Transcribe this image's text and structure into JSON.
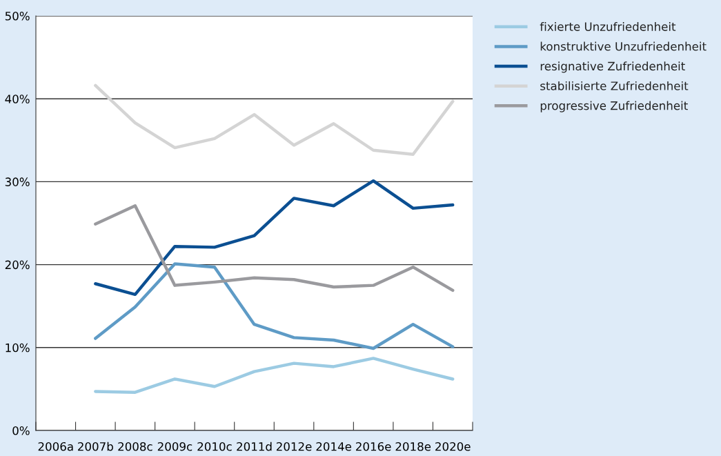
{
  "chart_data": {
    "type": "line",
    "categories": [
      "2006a",
      "2007b",
      "2008c",
      "2009c",
      "2010c",
      "2011d",
      "2012e",
      "2014e",
      "2016e",
      "2018e",
      "2020e"
    ],
    "ylim": [
      0,
      50
    ],
    "yticks": [
      {
        "value": 0,
        "label": "0%"
      },
      {
        "value": 10,
        "label": "10%"
      },
      {
        "value": 20,
        "label": "20%"
      },
      {
        "value": 30,
        "label": "30%"
      },
      {
        "value": 40,
        "label": "40%"
      },
      {
        "value": 50,
        "label": "50%"
      }
    ],
    "grid": "y",
    "legend": "top right",
    "marker": "none",
    "line_style": "solid",
    "series": [
      {
        "name": "fixierte Unzufriedenheit",
        "color": "#9ccbe3",
        "values": [
          null,
          4.7,
          4.6,
          6.2,
          5.3,
          7.1,
          8.1,
          7.7,
          8.7,
          7.4,
          6.2
        ]
      },
      {
        "name": "konstruktive Unzufriedenheit",
        "color": "#5e9bc6",
        "values": [
          null,
          11.1,
          14.9,
          20.1,
          19.7,
          12.8,
          11.2,
          10.9,
          9.9,
          12.8,
          10.1
        ]
      },
      {
        "name": "resignative Zufriedenheit",
        "color": "#0b4f92",
        "values": [
          null,
          17.7,
          16.4,
          22.2,
          22.1,
          23.5,
          28.0,
          27.1,
          30.1,
          26.8,
          27.2
        ]
      },
      {
        "name": "stabilisierte Zufriedenheit",
        "color": "#d4d4d4",
        "values": [
          null,
          41.6,
          37.1,
          34.1,
          35.2,
          38.1,
          34.4,
          37.0,
          33.8,
          33.3,
          39.7
        ]
      },
      {
        "name": "progressive Zufriedenheit",
        "color": "#9a9a9e",
        "values": [
          null,
          24.9,
          27.1,
          17.5,
          17.9,
          18.4,
          18.2,
          17.3,
          17.5,
          19.7,
          16.9
        ]
      }
    ]
  }
}
